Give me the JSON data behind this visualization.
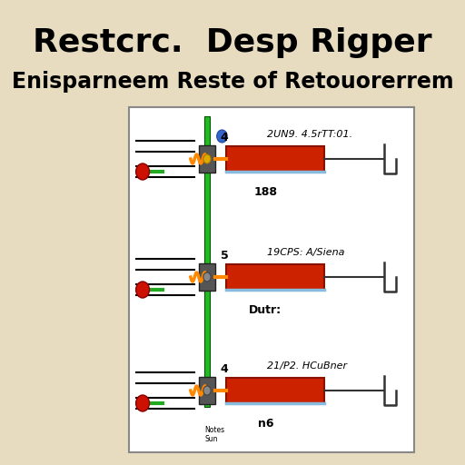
{
  "background_color": "#e8dcc0",
  "title_line1": "Restcrc.  Desp Rigper",
  "title_line2": "Enisparneem Reste of Retouorerrem",
  "title_fontsize": 26,
  "subtitle_fontsize": 17,
  "panel_bg": "#ffffff",
  "panel_border": "#888888",
  "rows": [
    {
      "label_top": "2UN9. 4.5rTT:01.",
      "label_bot": "188",
      "num_label": "4"
    },
    {
      "label_top": "19CPS: A/Siena",
      "label_bot": "Dutr:",
      "num_label": "5"
    },
    {
      "label_top": "21/P2. HCuBner",
      "label_bot": "n6",
      "num_label": "4"
    }
  ],
  "green_bar_color": "#22bb22",
  "orange_wire_color": "#ff8800",
  "red_dot_color": "#cc1100",
  "resistor_color": "#cc2200",
  "resistor_border": "#881100",
  "connector_color": "#555555",
  "blue_dot_color": "#3366cc",
  "wire_color": "#333333",
  "notes_text": "Notes\nSun"
}
